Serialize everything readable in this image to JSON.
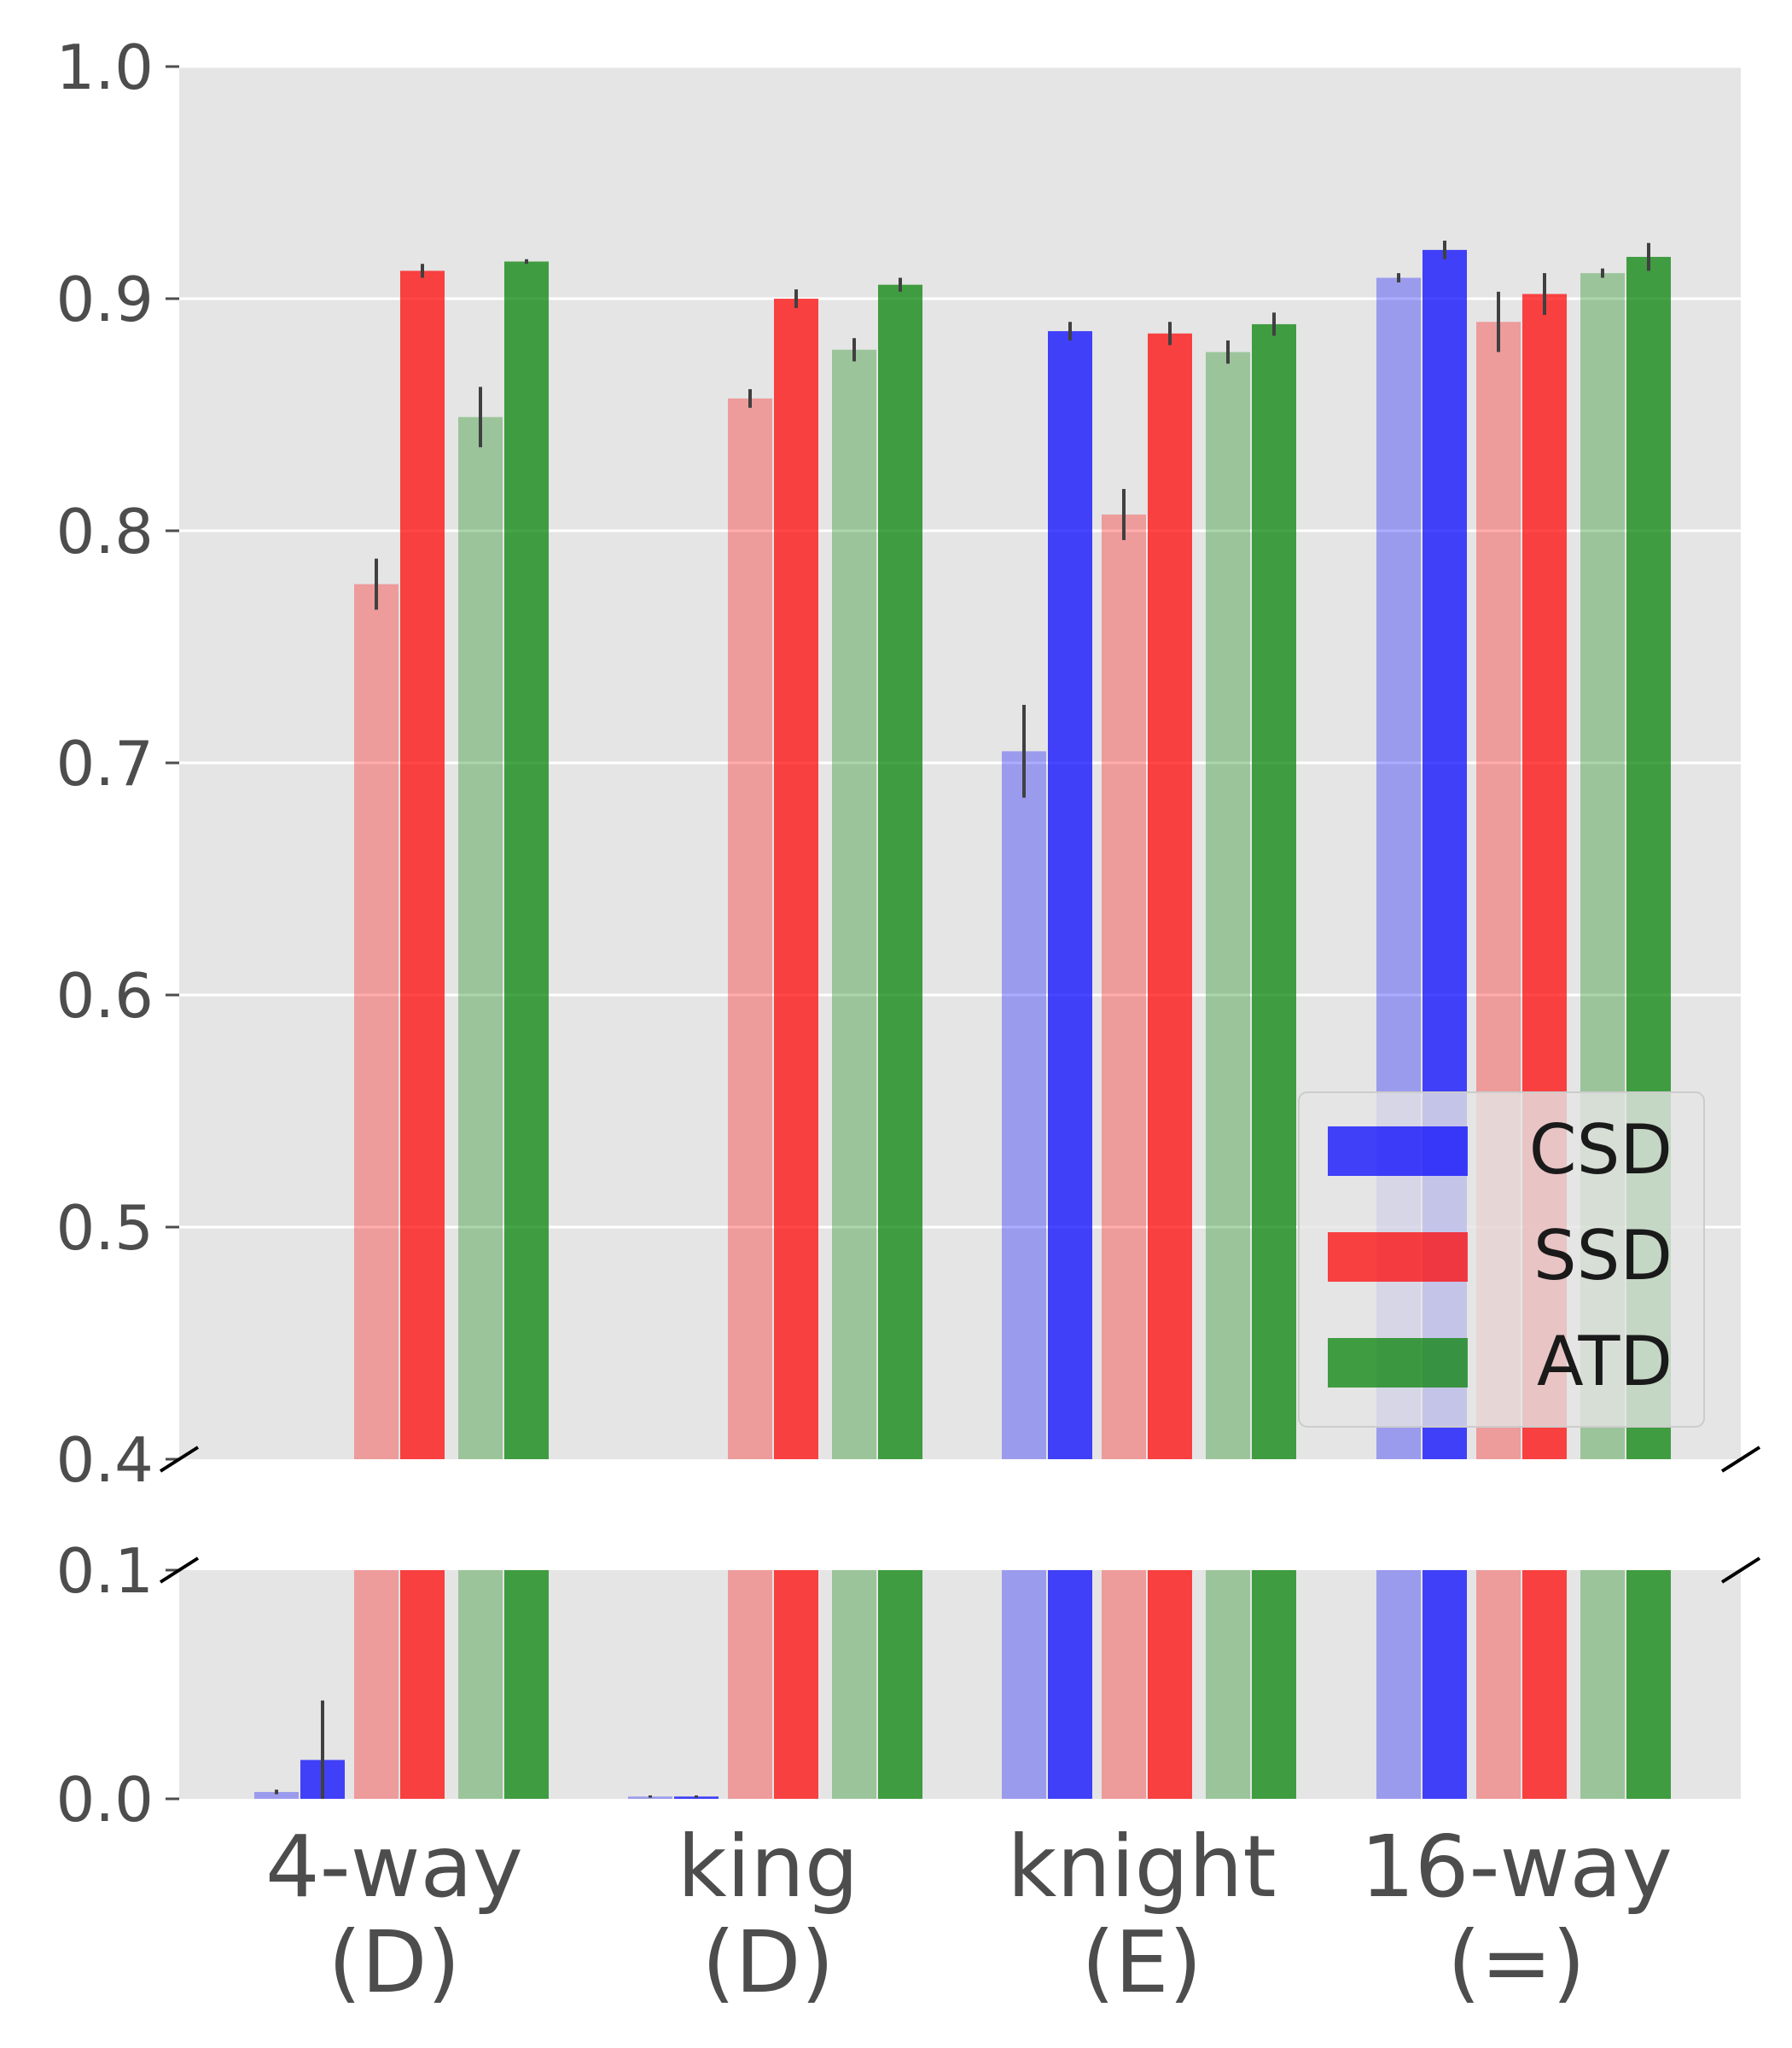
{
  "chart_data": {
    "type": "bar",
    "title": "",
    "xlabel": "",
    "ylabel": "",
    "axis_break": true,
    "ylim_upper": [
      0.4,
      1.0
    ],
    "ylim_lower": [
      0.0,
      0.1
    ],
    "yticks_upper": [
      "0.4",
      "0.5",
      "0.6",
      "0.7",
      "0.8",
      "0.9",
      "1.0"
    ],
    "yticks_lower": [
      "0.0",
      "0.1"
    ],
    "grid": true,
    "legend_position": "lower-right",
    "categories": [
      {
        "line1": "4-way",
        "line2": "(D)"
      },
      {
        "line1": "king",
        "line2": "(D)"
      },
      {
        "line1": "knight",
        "line2": "(E)"
      },
      {
        "line1": "16-way",
        "line2": "(=)"
      }
    ],
    "series": [
      {
        "name": "CSD",
        "color": "#0000ff",
        "values": [
          0.003,
          0.001,
          0.705,
          0.909
        ],
        "errors": [
          0.001,
          0.0005,
          0.02,
          0.002
        ],
        "light": true
      },
      {
        "name": "CSD",
        "color": "#0000ff",
        "values": [
          0.017,
          0.001,
          0.886,
          0.921
        ],
        "errors": [
          0.026,
          0.0005,
          0.004,
          0.004
        ],
        "light": false,
        "legend": true
      },
      {
        "name": "SSD",
        "color": "#ff0000",
        "values": [
          0.777,
          0.857,
          0.807,
          0.89
        ],
        "errors": [
          0.011,
          0.004,
          0.011,
          0.013
        ],
        "light": true
      },
      {
        "name": "SSD",
        "color": "#ff0000",
        "values": [
          0.912,
          0.9,
          0.885,
          0.902
        ],
        "errors": [
          0.003,
          0.004,
          0.005,
          0.009
        ],
        "light": false,
        "legend": true
      },
      {
        "name": "ATD",
        "color": "#008000",
        "values": [
          0.849,
          0.878,
          0.877,
          0.911
        ],
        "errors": [
          0.013,
          0.005,
          0.005,
          0.002
        ],
        "light": true
      },
      {
        "name": "ATD",
        "color": "#008000",
        "values": [
          0.916,
          0.906,
          0.889,
          0.918
        ],
        "errors": [
          0.001,
          0.003,
          0.005,
          0.006
        ],
        "light": false,
        "legend": true
      }
    ]
  }
}
